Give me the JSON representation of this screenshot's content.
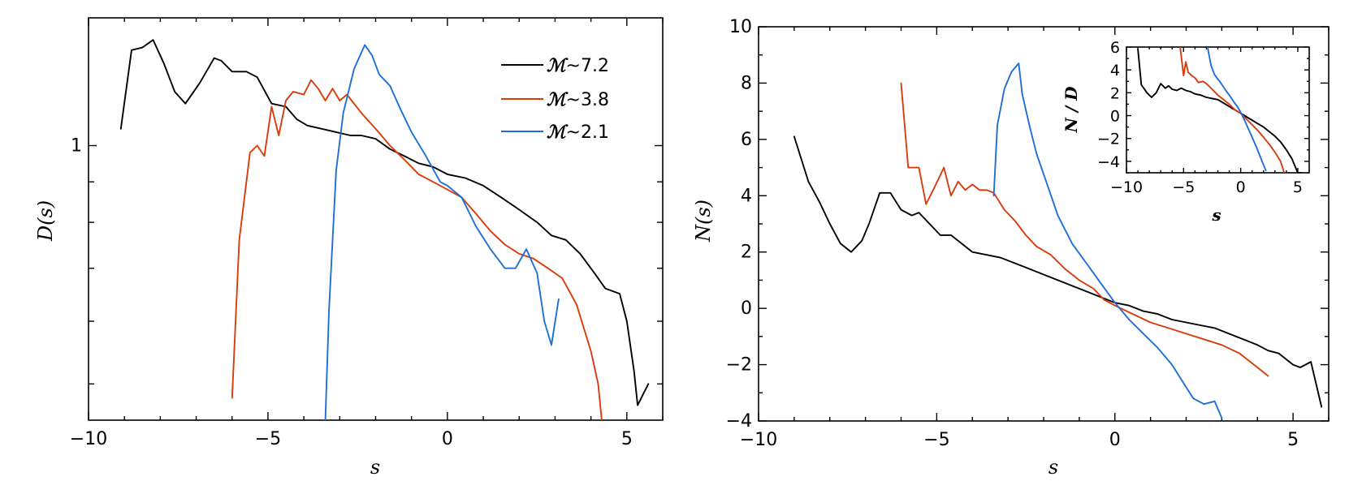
{
  "colors": {
    "m72": "#000000",
    "m38": "#d83c0c",
    "m21": "#1f6fd6"
  },
  "chart_data": [
    {
      "type": "line",
      "xlabel": "s",
      "ylabel": "D(s)",
      "xlim": [
        -10,
        6
      ],
      "ylog": true,
      "ylim": [
        0.45,
        1.45
      ],
      "xticks": [
        -10,
        -5,
        0,
        5
      ],
      "xtick_labels": [
        "−10",
        "−5",
        "0",
        "5"
      ],
      "yticks": [
        1
      ],
      "ytick_labels": [
        "1"
      ],
      "legend": {
        "placement": "top-right",
        "entries": [
          {
            "symbol": "ℳ",
            "text": "~7.2",
            "color_key": "m72"
          },
          {
            "symbol": "ℳ",
            "text": "~3.8",
            "color_key": "m38"
          },
          {
            "symbol": "ℳ",
            "text": "~2.1",
            "color_key": "m21"
          }
        ]
      },
      "series": [
        {
          "name": "ℳ~7.2",
          "color_key": "m72",
          "x": [
            -9.1,
            -8.8,
            -8.5,
            -8.2,
            -7.9,
            -7.6,
            -7.3,
            -6.9,
            -6.5,
            -6.3,
            -6.0,
            -5.6,
            -5.3,
            -4.9,
            -4.5,
            -4.2,
            -3.9,
            -3.5,
            -3.1,
            -2.7,
            -2.4,
            -2.0,
            -1.6,
            -1.2,
            -0.8,
            -0.4,
            0.0,
            0.5,
            1.0,
            1.5,
            2.0,
            2.5,
            2.9,
            3.3,
            3.7,
            4.1,
            4.4,
            4.8,
            5.0,
            5.2,
            5.3,
            5.6
          ],
          "y": [
            1.05,
            1.32,
            1.33,
            1.36,
            1.27,
            1.17,
            1.13,
            1.2,
            1.29,
            1.28,
            1.24,
            1.24,
            1.22,
            1.13,
            1.12,
            1.08,
            1.06,
            1.05,
            1.04,
            1.03,
            1.03,
            1.02,
            0.99,
            0.97,
            0.95,
            0.94,
            0.92,
            0.91,
            0.89,
            0.86,
            0.83,
            0.8,
            0.77,
            0.76,
            0.73,
            0.69,
            0.66,
            0.65,
            0.6,
            0.52,
            0.47,
            0.5
          ]
        },
        {
          "name": "ℳ~3.8",
          "color_key": "m38",
          "x": [
            -6.0,
            -5.8,
            -5.5,
            -5.3,
            -5.1,
            -4.9,
            -4.7,
            -4.5,
            -4.3,
            -4.0,
            -3.8,
            -3.6,
            -3.4,
            -3.2,
            -3.0,
            -2.8,
            -2.4,
            -2.0,
            -1.6,
            -1.2,
            -0.8,
            -0.4,
            0.0,
            0.4,
            0.8,
            1.2,
            1.6,
            2.0,
            2.4,
            2.8,
            3.2,
            3.6,
            4.0,
            4.2,
            4.3
          ],
          "y": [
            0.48,
            0.76,
            0.98,
            1.0,
            0.97,
            1.12,
            1.03,
            1.14,
            1.17,
            1.16,
            1.21,
            1.18,
            1.14,
            1.18,
            1.14,
            1.16,
            1.1,
            1.05,
            1.0,
            0.96,
            0.92,
            0.9,
            0.88,
            0.86,
            0.82,
            0.78,
            0.75,
            0.73,
            0.72,
            0.7,
            0.68,
            0.63,
            0.55,
            0.5,
            0.45
          ]
        },
        {
          "name": "ℳ~2.1",
          "color_key": "m21",
          "x": [
            -3.4,
            -3.3,
            -3.1,
            -2.9,
            -2.6,
            -2.3,
            -2.1,
            -1.9,
            -1.6,
            -1.3,
            -1.0,
            -0.6,
            -0.2,
            0.0,
            0.4,
            0.8,
            1.2,
            1.6,
            1.9,
            2.2,
            2.5,
            2.7,
            2.9,
            3.1
          ],
          "y": [
            0.45,
            0.62,
            0.93,
            1.1,
            1.25,
            1.34,
            1.3,
            1.23,
            1.19,
            1.11,
            1.04,
            0.97,
            0.9,
            0.89,
            0.86,
            0.79,
            0.74,
            0.7,
            0.7,
            0.74,
            0.69,
            0.6,
            0.56,
            0.64
          ]
        }
      ]
    },
    {
      "type": "line",
      "xlabel": "s",
      "ylabel": "N(s)",
      "xlim": [
        -10,
        6
      ],
      "ylim": [
        -4,
        10
      ],
      "xticks": [
        -10,
        -5,
        0,
        5
      ],
      "xtick_labels": [
        "−10",
        "−5",
        "0",
        "5"
      ],
      "yticks": [
        -4,
        -2,
        0,
        2,
        4,
        6,
        8,
        10
      ],
      "ytick_labels": [
        "−4",
        "−2",
        "0",
        "2",
        "4",
        "6",
        "8",
        "10"
      ],
      "series": [
        {
          "name": "ℳ~7.2",
          "color_key": "m72",
          "x": [
            -9.0,
            -8.6,
            -8.3,
            -8.0,
            -7.7,
            -7.4,
            -7.1,
            -6.9,
            -6.6,
            -6.3,
            -6.0,
            -5.7,
            -5.5,
            -5.2,
            -4.9,
            -4.6,
            -4.3,
            -4.0,
            -3.6,
            -3.2,
            -2.8,
            -2.4,
            -2.0,
            -1.6,
            -1.2,
            -0.8,
            -0.4,
            0.0,
            0.4,
            0.8,
            1.2,
            1.6,
            2.0,
            2.4,
            2.8,
            3.2,
            3.6,
            4.0,
            4.3,
            4.6,
            5.0,
            5.2,
            5.5,
            5.8
          ],
          "y": [
            6.1,
            4.5,
            3.8,
            3.0,
            2.3,
            2.0,
            2.4,
            3.0,
            4.1,
            4.1,
            3.5,
            3.3,
            3.4,
            3.0,
            2.6,
            2.6,
            2.3,
            2.0,
            1.9,
            1.8,
            1.6,
            1.4,
            1.2,
            1.0,
            0.8,
            0.6,
            0.4,
            0.2,
            0.1,
            -0.1,
            -0.2,
            -0.4,
            -0.5,
            -0.6,
            -0.7,
            -0.9,
            -1.1,
            -1.3,
            -1.5,
            -1.6,
            -2.0,
            -2.1,
            -1.9,
            -3.5
          ]
        },
        {
          "name": "ℳ~3.8",
          "color_key": "m38",
          "x": [
            -6.0,
            -5.8,
            -5.5,
            -5.3,
            -5.1,
            -4.8,
            -4.6,
            -4.4,
            -4.2,
            -4.0,
            -3.8,
            -3.6,
            -3.4,
            -3.1,
            -2.8,
            -2.5,
            -2.2,
            -1.8,
            -1.4,
            -1.0,
            -0.6,
            -0.3,
            0.0,
            0.5,
            1.0,
            1.5,
            2.0,
            2.5,
            3.0,
            3.5,
            4.0,
            4.3
          ],
          "y": [
            8.0,
            5.0,
            5.0,
            3.7,
            4.2,
            5.0,
            4.0,
            4.5,
            4.2,
            4.4,
            4.2,
            4.2,
            4.1,
            3.5,
            3.1,
            2.6,
            2.2,
            1.9,
            1.4,
            1.0,
            0.7,
            0.3,
            0.1,
            -0.2,
            -0.5,
            -0.7,
            -0.9,
            -1.1,
            -1.3,
            -1.6,
            -2.1,
            -2.4
          ]
        },
        {
          "name": "ℳ~2.1",
          "color_key": "m21",
          "x": [
            -3.4,
            -3.3,
            -3.1,
            -2.9,
            -2.7,
            -2.6,
            -2.4,
            -2.2,
            -1.9,
            -1.6,
            -1.2,
            -0.8,
            -0.4,
            0.0,
            0.4,
            0.8,
            1.2,
            1.6,
            1.9,
            2.2,
            2.5,
            2.8,
            3.0
          ],
          "y": [
            4.0,
            6.5,
            7.8,
            8.4,
            8.7,
            7.6,
            6.5,
            5.5,
            4.4,
            3.3,
            2.3,
            1.6,
            0.9,
            0.2,
            -0.4,
            -0.9,
            -1.4,
            -2.0,
            -2.6,
            -3.2,
            -3.4,
            -3.3,
            -3.9
          ]
        }
      ]
    },
    {
      "type": "line",
      "role": "inset",
      "xlabel": "s",
      "ylabel": "N / D",
      "xlim": [
        -10,
        6
      ],
      "ylim": [
        -5,
        6
      ],
      "xticks": [
        -10,
        -5,
        0,
        5
      ],
      "xtick_labels": [
        "−10",
        "−5",
        "0",
        "5"
      ],
      "yticks": [
        -4,
        -2,
        0,
        2,
        4,
        6
      ],
      "ytick_labels": [
        "−4",
        "−2",
        "0",
        "2",
        "4",
        "6"
      ],
      "series": [
        {
          "name": "ℳ~7.2",
          "color_key": "m72",
          "x": [
            -9.0,
            -8.7,
            -8.2,
            -7.8,
            -7.4,
            -7.0,
            -6.6,
            -6.3,
            -6.0,
            -5.6,
            -5.2,
            -4.8,
            -4.4,
            -4.0,
            -3.5,
            -3.0,
            -2.5,
            -2.0,
            -1.5,
            -1.0,
            -0.5,
            0.0,
            0.5,
            1.0,
            1.5,
            2.0,
            2.5,
            3.0,
            3.5,
            4.0,
            4.5,
            5.0,
            5.3
          ],
          "y": [
            5.8,
            2.7,
            2.0,
            1.6,
            2.0,
            2.8,
            2.4,
            2.6,
            2.3,
            2.2,
            2.4,
            2.2,
            2.1,
            1.9,
            1.8,
            1.6,
            1.5,
            1.4,
            1.1,
            0.8,
            0.5,
            0.2,
            -0.1,
            -0.4,
            -0.7,
            -1.0,
            -1.4,
            -1.8,
            -2.3,
            -3.0,
            -3.8,
            -5.0,
            -5.0
          ]
        },
        {
          "name": "ℳ~3.8",
          "color_key": "m38",
          "x": [
            -5.3,
            -5.0,
            -4.8,
            -4.6,
            -4.3,
            -4.0,
            -3.7,
            -3.3,
            -3.0,
            -2.5,
            -2.0,
            -1.5,
            -1.0,
            -0.5,
            0.0,
            0.5,
            1.0,
            1.5,
            2.0,
            2.5,
            3.0,
            3.5,
            3.8
          ],
          "y": [
            6.0,
            3.5,
            4.7,
            3.8,
            3.5,
            3.3,
            2.9,
            3.0,
            2.8,
            2.3,
            1.8,
            1.4,
            1.0,
            0.5,
            0.2,
            -0.3,
            -0.8,
            -1.3,
            -1.9,
            -2.5,
            -3.2,
            -4.0,
            -5.0
          ]
        },
        {
          "name": "ℳ~2.1",
          "color_key": "m21",
          "x": [
            -2.9,
            -2.6,
            -2.3,
            -2.0,
            -1.7,
            -1.3,
            -1.0,
            -0.6,
            -0.3,
            0.0,
            0.3,
            0.6,
            1.0,
            1.4,
            1.8,
            2.2
          ],
          "y": [
            6.0,
            4.4,
            3.6,
            3.2,
            2.8,
            2.2,
            1.8,
            1.2,
            0.8,
            0.3,
            -0.3,
            -1.0,
            -1.9,
            -2.8,
            -3.8,
            -4.8
          ]
        }
      ]
    }
  ]
}
